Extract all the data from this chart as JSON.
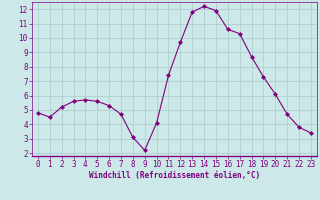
{
  "x": [
    0,
    1,
    2,
    3,
    4,
    5,
    6,
    7,
    8,
    9,
    10,
    11,
    12,
    13,
    14,
    15,
    16,
    17,
    18,
    19,
    20,
    21,
    22,
    23
  ],
  "y": [
    4.8,
    4.5,
    5.2,
    5.6,
    5.7,
    5.6,
    5.3,
    4.7,
    3.1,
    2.2,
    4.1,
    7.4,
    9.7,
    11.8,
    12.2,
    11.9,
    10.6,
    10.3,
    8.7,
    7.3,
    6.1,
    4.7,
    3.8,
    3.4
  ],
  "line_color": "#800080",
  "marker": "D",
  "marker_size": 2.0,
  "background_color": "#cce8e8",
  "grid_color": "#aacccc",
  "xlabel": "Windchill (Refroidissement éolien,°C)",
  "xlabel_color": "#800080",
  "tick_color": "#800080",
  "ylim": [
    1.8,
    12.5
  ],
  "xlim": [
    -0.5,
    23.5
  ],
  "yticks": [
    2,
    3,
    4,
    5,
    6,
    7,
    8,
    9,
    10,
    11,
    12
  ],
  "xticks": [
    0,
    1,
    2,
    3,
    4,
    5,
    6,
    7,
    8,
    9,
    10,
    11,
    12,
    13,
    14,
    15,
    16,
    17,
    18,
    19,
    20,
    21,
    22,
    23
  ],
  "tick_fontsize": 5.5,
  "xlabel_fontsize": 5.5
}
